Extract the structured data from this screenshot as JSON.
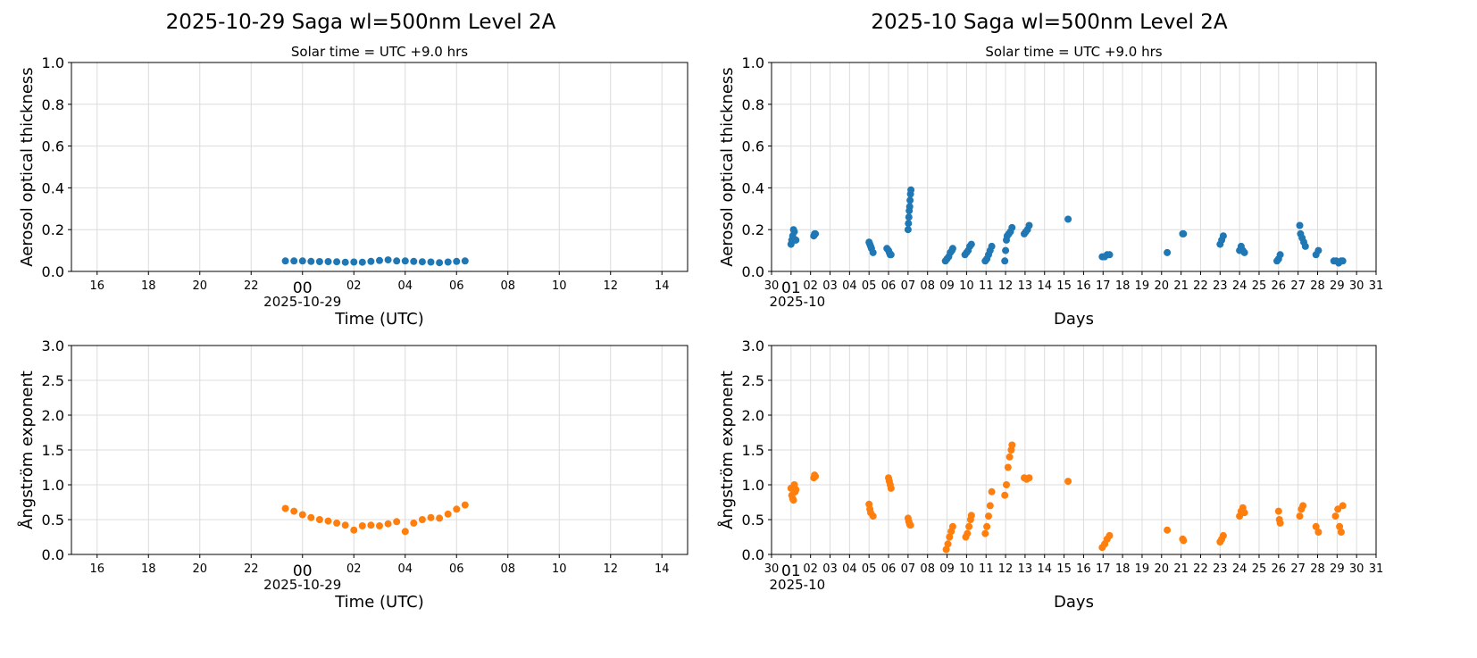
{
  "colors": {
    "aot": "#1f77b4",
    "angstrom": "#ff7f0e",
    "grid": "#dcdcdc"
  },
  "chart_data": [
    {
      "type": "scatter",
      "panel": "daily-aot",
      "title": "2025-10-29  Saga  wl=500nm  Level 2A",
      "subtitle": "Solar time = UTC +9.0 hrs",
      "xlabel": "Time (UTC)",
      "ylabel": "Aerosol optical thickness",
      "xlim": [
        "2025-10-28T15:00",
        "2025-10-29T15:00"
      ],
      "ylim": [
        0,
        1.0
      ],
      "grid": true,
      "xticks": [
        "16",
        "18",
        "20",
        "22",
        "00",
        "02",
        "04",
        "06",
        "08",
        "10",
        "12",
        "14"
      ],
      "xtick_date": "2025-10-29",
      "yticks": [
        "0.0",
        "0.2",
        "0.4",
        "0.6",
        "0.8",
        "1.0"
      ],
      "color": "#1f77b4",
      "points": [
        [
          "2025-10-28T23:20",
          0.05
        ],
        [
          "2025-10-28T23:40",
          0.05
        ],
        [
          "2025-10-29T00:00",
          0.05
        ],
        [
          "2025-10-29T00:20",
          0.048
        ],
        [
          "2025-10-29T00:40",
          0.047
        ],
        [
          "2025-10-29T01:00",
          0.047
        ],
        [
          "2025-10-29T01:20",
          0.046
        ],
        [
          "2025-10-29T01:40",
          0.044
        ],
        [
          "2025-10-29T02:00",
          0.045
        ],
        [
          "2025-10-29T02:20",
          0.044
        ],
        [
          "2025-10-29T02:40",
          0.048
        ],
        [
          "2025-10-29T03:00",
          0.052
        ],
        [
          "2025-10-29T03:20",
          0.055
        ],
        [
          "2025-10-29T03:40",
          0.05
        ],
        [
          "2025-10-29T04:00",
          0.05
        ],
        [
          "2025-10-29T04:20",
          0.048
        ],
        [
          "2025-10-29T04:40",
          0.046
        ],
        [
          "2025-10-29T05:00",
          0.045
        ],
        [
          "2025-10-29T05:20",
          0.042
        ],
        [
          "2025-10-29T05:40",
          0.045
        ],
        [
          "2025-10-29T06:00",
          0.048
        ],
        [
          "2025-10-29T06:20",
          0.05
        ]
      ]
    },
    {
      "type": "scatter",
      "panel": "monthly-aot",
      "title": "2025-10  Saga  wl=500nm  Level 2A",
      "subtitle": "Solar time = UTC +9.0 hrs",
      "xlabel": "Days",
      "ylabel": "Aerosol optical thickness",
      "xlim": [
        "2025-09-30",
        "2025-10-31"
      ],
      "ylim": [
        0,
        1.0
      ],
      "grid": true,
      "xticks": [
        "30",
        "01",
        "02",
        "03",
        "04",
        "05",
        "06",
        "07",
        "08",
        "09",
        "10",
        "11",
        "12",
        "13",
        "14",
        "15",
        "16",
        "17",
        "18",
        "19",
        "20",
        "21",
        "22",
        "23",
        "24",
        "25",
        "26",
        "27",
        "28",
        "29",
        "30",
        "31"
      ],
      "xtick_date": "2025-10",
      "yticks": [
        "0.0",
        "0.2",
        "0.4",
        "0.6",
        "0.8",
        "1.0"
      ],
      "color": "#1f77b4",
      "points": [
        [
          "2025-10-01T00:00",
          0.13
        ],
        [
          "2025-10-01T01:00",
          0.15
        ],
        [
          "2025-10-01T02:00",
          0.17
        ],
        [
          "2025-10-01T03:00",
          0.2
        ],
        [
          "2025-10-01T04:00",
          0.19
        ],
        [
          "2025-10-01T05:00",
          0.15
        ],
        [
          "2025-10-01T06:00",
          0.15
        ],
        [
          "2025-10-02T04:00",
          0.17
        ],
        [
          "2025-10-02T05:00",
          0.18
        ],
        [
          "2025-10-02T06:00",
          0.18
        ],
        [
          "2025-10-05T00:00",
          0.14
        ],
        [
          "2025-10-05T01:00",
          0.13
        ],
        [
          "2025-10-05T02:00",
          0.12
        ],
        [
          "2025-10-05T03:00",
          0.11
        ],
        [
          "2025-10-05T05:00",
          0.09
        ],
        [
          "2025-10-05T22:00",
          0.11
        ],
        [
          "2025-10-06T00:00",
          0.1
        ],
        [
          "2025-10-06T01:00",
          0.09
        ],
        [
          "2025-10-06T02:00",
          0.08
        ],
        [
          "2025-10-06T03:00",
          0.08
        ],
        [
          "2025-10-07T00:00",
          0.2
        ],
        [
          "2025-10-07T00:30",
          0.23
        ],
        [
          "2025-10-07T01:00",
          0.26
        ],
        [
          "2025-10-07T01:30",
          0.29
        ],
        [
          "2025-10-07T02:00",
          0.31
        ],
        [
          "2025-10-07T02:30",
          0.34
        ],
        [
          "2025-10-07T03:00",
          0.37
        ],
        [
          "2025-10-07T03:30",
          0.39
        ],
        [
          "2025-10-08T22:00",
          0.05
        ],
        [
          "2025-10-09T00:00",
          0.06
        ],
        [
          "2025-10-09T02:00",
          0.07
        ],
        [
          "2025-10-09T04:00",
          0.09
        ],
        [
          "2025-10-09T06:00",
          0.1
        ],
        [
          "2025-10-09T07:00",
          0.11
        ],
        [
          "2025-10-09T22:00",
          0.08
        ],
        [
          "2025-10-10T00:00",
          0.09
        ],
        [
          "2025-10-10T02:00",
          0.1
        ],
        [
          "2025-10-10T04:00",
          0.12
        ],
        [
          "2025-10-10T06:00",
          0.13
        ],
        [
          "2025-10-10T23:00",
          0.05
        ],
        [
          "2025-10-11T01:00",
          0.06
        ],
        [
          "2025-10-11T03:00",
          0.08
        ],
        [
          "2025-10-11T05:00",
          0.1
        ],
        [
          "2025-10-11T07:00",
          0.12
        ],
        [
          "2025-10-11T23:00",
          0.05
        ],
        [
          "2025-10-12T00:00",
          0.1
        ],
        [
          "2025-10-12T01:00",
          0.15
        ],
        [
          "2025-10-12T02:00",
          0.17
        ],
        [
          "2025-10-12T04:00",
          0.18
        ],
        [
          "2025-10-12T06:00",
          0.19
        ],
        [
          "2025-10-12T08:00",
          0.21
        ],
        [
          "2025-10-12T23:00",
          0.18
        ],
        [
          "2025-10-13T01:00",
          0.19
        ],
        [
          "2025-10-13T03:00",
          0.2
        ],
        [
          "2025-10-13T05:00",
          0.22
        ],
        [
          "2025-10-15T05:00",
          0.25
        ],
        [
          "2025-10-16T23:00",
          0.07
        ],
        [
          "2025-10-17T02:00",
          0.07
        ],
        [
          "2025-10-17T05:00",
          0.08
        ],
        [
          "2025-10-17T08:00",
          0.08
        ],
        [
          "2025-10-20T07:00",
          0.09
        ],
        [
          "2025-10-21T02:00",
          0.18
        ],
        [
          "2025-10-21T03:00",
          0.18
        ],
        [
          "2025-10-23T00:00",
          0.13
        ],
        [
          "2025-10-23T02:00",
          0.15
        ],
        [
          "2025-10-23T04:00",
          0.17
        ],
        [
          "2025-10-24T00:00",
          0.1
        ],
        [
          "2025-10-24T02:00",
          0.12
        ],
        [
          "2025-10-24T04:00",
          0.1
        ],
        [
          "2025-10-24T06:00",
          0.09
        ],
        [
          "2025-10-25T22:00",
          0.05
        ],
        [
          "2025-10-26T00:00",
          0.06
        ],
        [
          "2025-10-26T02:00",
          0.08
        ],
        [
          "2025-10-27T02:00",
          0.22
        ],
        [
          "2025-10-27T03:00",
          0.18
        ],
        [
          "2025-10-27T05:00",
          0.16
        ],
        [
          "2025-10-27T07:00",
          0.14
        ],
        [
          "2025-10-27T09:00",
          0.12
        ],
        [
          "2025-10-27T22:00",
          0.08
        ],
        [
          "2025-10-28T01:00",
          0.1
        ],
        [
          "2025-10-28T20:00",
          0.05
        ],
        [
          "2025-10-28T23:00",
          0.05
        ],
        [
          "2025-10-29T02:00",
          0.04
        ],
        [
          "2025-10-29T05:00",
          0.05
        ],
        [
          "2025-10-29T07:00",
          0.05
        ]
      ]
    },
    {
      "type": "scatter",
      "panel": "daily-angstrom",
      "xlabel": "Time (UTC)",
      "ylabel": "Ångström exponent",
      "xlim": [
        "2025-10-28T15:00",
        "2025-10-29T15:00"
      ],
      "ylim": [
        0,
        3.0
      ],
      "grid": true,
      "xticks": [
        "16",
        "18",
        "20",
        "22",
        "00",
        "02",
        "04",
        "06",
        "08",
        "10",
        "12",
        "14"
      ],
      "xtick_date": "2025-10-29",
      "yticks": [
        "0.0",
        "0.5",
        "1.0",
        "1.5",
        "2.0",
        "2.5",
        "3.0"
      ],
      "color": "#ff7f0e",
      "points": [
        [
          "2025-10-28T23:20",
          0.66
        ],
        [
          "2025-10-28T23:40",
          0.62
        ],
        [
          "2025-10-29T00:00",
          0.57
        ],
        [
          "2025-10-29T00:20",
          0.53
        ],
        [
          "2025-10-29T00:40",
          0.5
        ],
        [
          "2025-10-29T01:00",
          0.48
        ],
        [
          "2025-10-29T01:20",
          0.45
        ],
        [
          "2025-10-29T01:40",
          0.42
        ],
        [
          "2025-10-29T02:00",
          0.35
        ],
        [
          "2025-10-29T02:20",
          0.41
        ],
        [
          "2025-10-29T02:40",
          0.42
        ],
        [
          "2025-10-29T03:00",
          0.41
        ],
        [
          "2025-10-29T03:20",
          0.44
        ],
        [
          "2025-10-29T03:40",
          0.47
        ],
        [
          "2025-10-29T04:00",
          0.33
        ],
        [
          "2025-10-29T04:20",
          0.45
        ],
        [
          "2025-10-29T04:40",
          0.5
        ],
        [
          "2025-10-29T05:00",
          0.53
        ],
        [
          "2025-10-29T05:20",
          0.52
        ],
        [
          "2025-10-29T05:40",
          0.58
        ],
        [
          "2025-10-29T06:00",
          0.65
        ],
        [
          "2025-10-29T06:20",
          0.71
        ]
      ]
    },
    {
      "type": "scatter",
      "panel": "monthly-angstrom",
      "xlabel": "Days",
      "ylabel": "Ångström exponent",
      "xlim": [
        "2025-09-30",
        "2025-10-31"
      ],
      "ylim": [
        0,
        3.0
      ],
      "grid": true,
      "xticks": [
        "30",
        "01",
        "02",
        "03",
        "04",
        "05",
        "06",
        "07",
        "08",
        "09",
        "10",
        "11",
        "12",
        "13",
        "14",
        "15",
        "16",
        "17",
        "18",
        "19",
        "20",
        "21",
        "22",
        "23",
        "24",
        "25",
        "26",
        "27",
        "28",
        "29",
        "30",
        "31"
      ],
      "xtick_date": "2025-10",
      "yticks": [
        "0.0",
        "0.5",
        "1.0",
        "1.5",
        "2.0",
        "2.5",
        "3.0"
      ],
      "color": "#ff7f0e",
      "points": [
        [
          "2025-10-01T00:00",
          0.95
        ],
        [
          "2025-10-01T01:00",
          0.85
        ],
        [
          "2025-10-01T02:00",
          0.8
        ],
        [
          "2025-10-01T03:00",
          0.78
        ],
        [
          "2025-10-01T04:00",
          1.0
        ],
        [
          "2025-10-01T05:00",
          0.9
        ],
        [
          "2025-10-01T06:00",
          0.93
        ],
        [
          "2025-10-02T04:00",
          1.1
        ],
        [
          "2025-10-02T05:00",
          1.14
        ],
        [
          "2025-10-02T06:00",
          1.12
        ],
        [
          "2025-10-05T00:00",
          0.72
        ],
        [
          "2025-10-05T01:00",
          0.65
        ],
        [
          "2025-10-05T02:00",
          0.6
        ],
        [
          "2025-10-05T05:00",
          0.55
        ],
        [
          "2025-10-06T00:00",
          1.1
        ],
        [
          "2025-10-06T01:00",
          1.05
        ],
        [
          "2025-10-06T02:00",
          1.0
        ],
        [
          "2025-10-06T03:00",
          0.95
        ],
        [
          "2025-10-07T00:00",
          0.52
        ],
        [
          "2025-10-07T01:00",
          0.47
        ],
        [
          "2025-10-07T02:00",
          0.43
        ],
        [
          "2025-10-07T03:00",
          0.42
        ],
        [
          "2025-10-08T23:00",
          0.07
        ],
        [
          "2025-10-09T01:00",
          0.15
        ],
        [
          "2025-10-09T03:00",
          0.25
        ],
        [
          "2025-10-09T05:00",
          0.33
        ],
        [
          "2025-10-09T07:00",
          0.4
        ],
        [
          "2025-10-09T23:00",
          0.25
        ],
        [
          "2025-10-10T01:00",
          0.3
        ],
        [
          "2025-10-10T03:00",
          0.4
        ],
        [
          "2025-10-10T05:00",
          0.5
        ],
        [
          "2025-10-10T06:00",
          0.56
        ],
        [
          "2025-10-10T23:00",
          0.3
        ],
        [
          "2025-10-11T01:00",
          0.4
        ],
        [
          "2025-10-11T03:00",
          0.55
        ],
        [
          "2025-10-11T05:00",
          0.7
        ],
        [
          "2025-10-11T07:00",
          0.9
        ],
        [
          "2025-10-11T23:00",
          0.85
        ],
        [
          "2025-10-12T01:00",
          1.0
        ],
        [
          "2025-10-12T03:00",
          1.25
        ],
        [
          "2025-10-12T05:00",
          1.4
        ],
        [
          "2025-10-12T07:00",
          1.5
        ],
        [
          "2025-10-12T08:00",
          1.57
        ],
        [
          "2025-10-12T23:00",
          1.1
        ],
        [
          "2025-10-13T02:00",
          1.08
        ],
        [
          "2025-10-13T05:00",
          1.1
        ],
        [
          "2025-10-15T05:00",
          1.05
        ],
        [
          "2025-10-16T23:00",
          0.1
        ],
        [
          "2025-10-17T02:00",
          0.15
        ],
        [
          "2025-10-17T05:00",
          0.22
        ],
        [
          "2025-10-17T08:00",
          0.27
        ],
        [
          "2025-10-20T07:00",
          0.35
        ],
        [
          "2025-10-21T02:00",
          0.22
        ],
        [
          "2025-10-21T03:00",
          0.2
        ],
        [
          "2025-10-23T00:00",
          0.18
        ],
        [
          "2025-10-23T02:00",
          0.22
        ],
        [
          "2025-10-23T04:00",
          0.27
        ],
        [
          "2025-10-24T00:00",
          0.55
        ],
        [
          "2025-10-24T02:00",
          0.62
        ],
        [
          "2025-10-24T04:00",
          0.67
        ],
        [
          "2025-10-24T06:00",
          0.6
        ],
        [
          "2025-10-26T00:00",
          0.62
        ],
        [
          "2025-10-26T01:00",
          0.5
        ],
        [
          "2025-10-26T02:00",
          0.45
        ],
        [
          "2025-10-27T02:00",
          0.55
        ],
        [
          "2025-10-27T04:00",
          0.65
        ],
        [
          "2025-10-27T06:00",
          0.7
        ],
        [
          "2025-10-27T22:00",
          0.4
        ],
        [
          "2025-10-28T01:00",
          0.32
        ],
        [
          "2025-10-28T22:00",
          0.55
        ],
        [
          "2025-10-29T01:00",
          0.65
        ],
        [
          "2025-10-29T03:00",
          0.4
        ],
        [
          "2025-10-29T05:00",
          0.32
        ],
        [
          "2025-10-29T07:00",
          0.7
        ]
      ]
    }
  ]
}
